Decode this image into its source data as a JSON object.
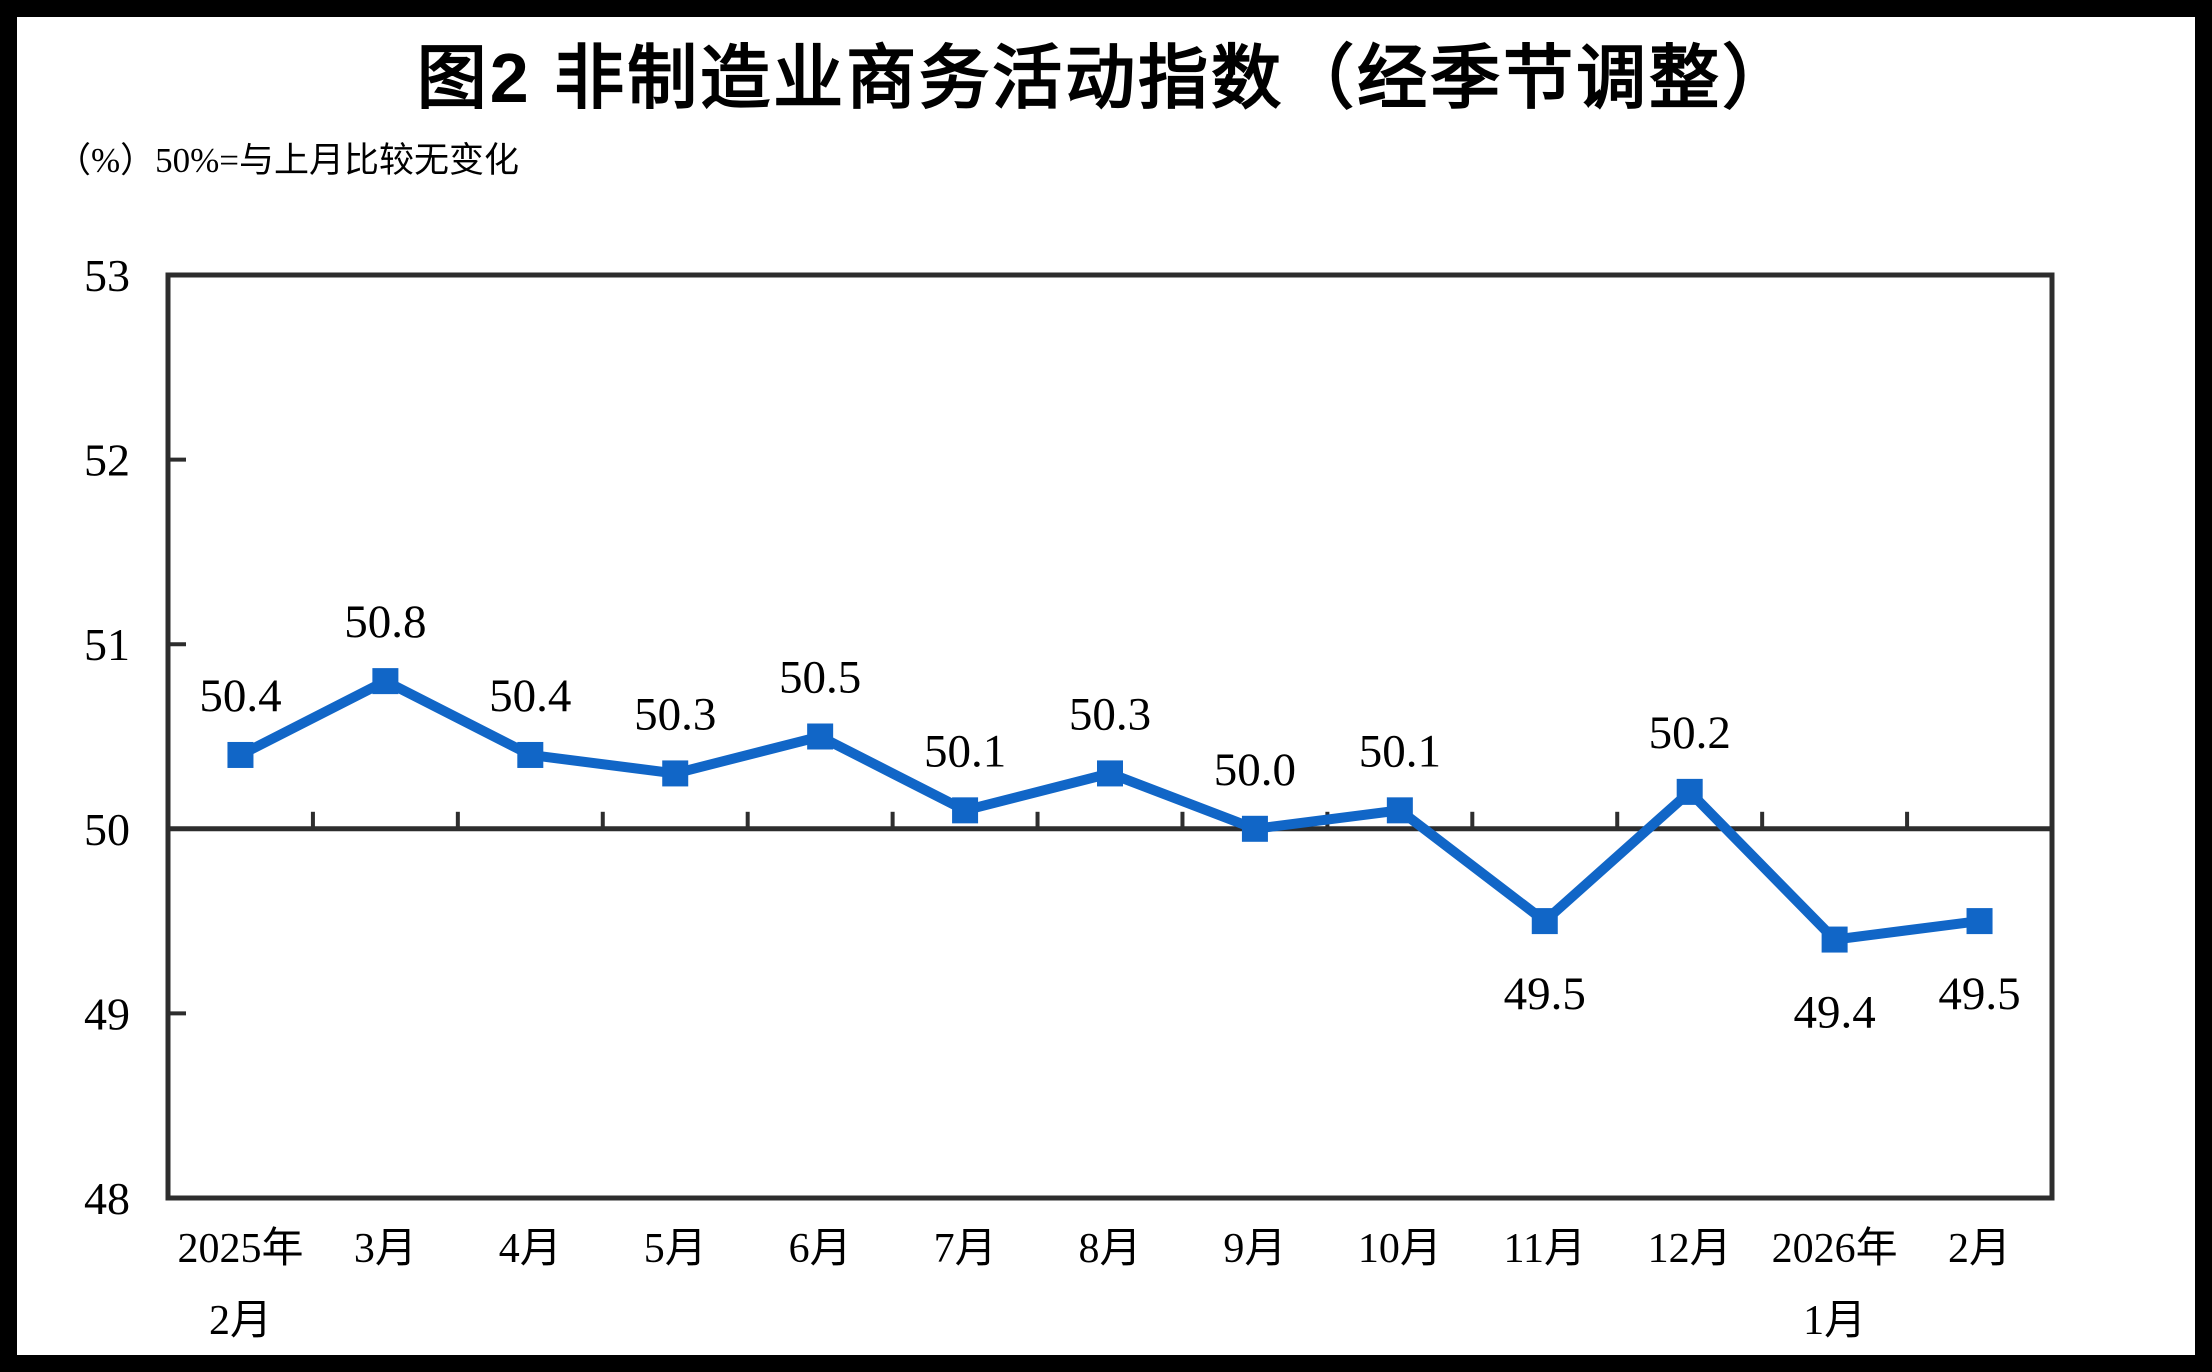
{
  "title": "图2 非制造业商务活动指数（经季节调整）",
  "subtitle": "（%）50%=与上月比较无变化",
  "chart_data": {
    "type": "line",
    "categories": [
      [
        "2025年",
        "2月"
      ],
      [
        "3月"
      ],
      [
        "4月"
      ],
      [
        "5月"
      ],
      [
        "6月"
      ],
      [
        "7月"
      ],
      [
        "8月"
      ],
      [
        "9月"
      ],
      [
        "10月"
      ],
      [
        "11月"
      ],
      [
        "12月"
      ],
      [
        "2026年",
        "1月"
      ],
      [
        "2月"
      ]
    ],
    "values": [
      50.4,
      50.8,
      50.4,
      50.3,
      50.5,
      50.1,
      50.3,
      50.0,
      50.1,
      49.5,
      50.2,
      49.4,
      49.5
    ],
    "data_labels": [
      "50.4",
      "50.8",
      "50.4",
      "50.3",
      "50.5",
      "50.1",
      "50.3",
      "50.0",
      "50.1",
      "49.5",
      "50.2",
      "49.4",
      "49.5"
    ],
    "title": "图2 非制造业商务活动指数（经季节调整）",
    "xlabel": "",
    "ylabel": "（%）50%=与上月比较无变化",
    "ylim": [
      48,
      53
    ],
    "yticks": [
      48,
      49,
      50,
      51,
      52,
      53
    ],
    "reference_line": 50,
    "grid": false,
    "legend": "none",
    "marker": "square",
    "colors": {
      "series": "#1166C7",
      "axis": "#2d2d2d",
      "text": "#000000",
      "background": "#ffffff",
      "frame": "#000000"
    }
  }
}
